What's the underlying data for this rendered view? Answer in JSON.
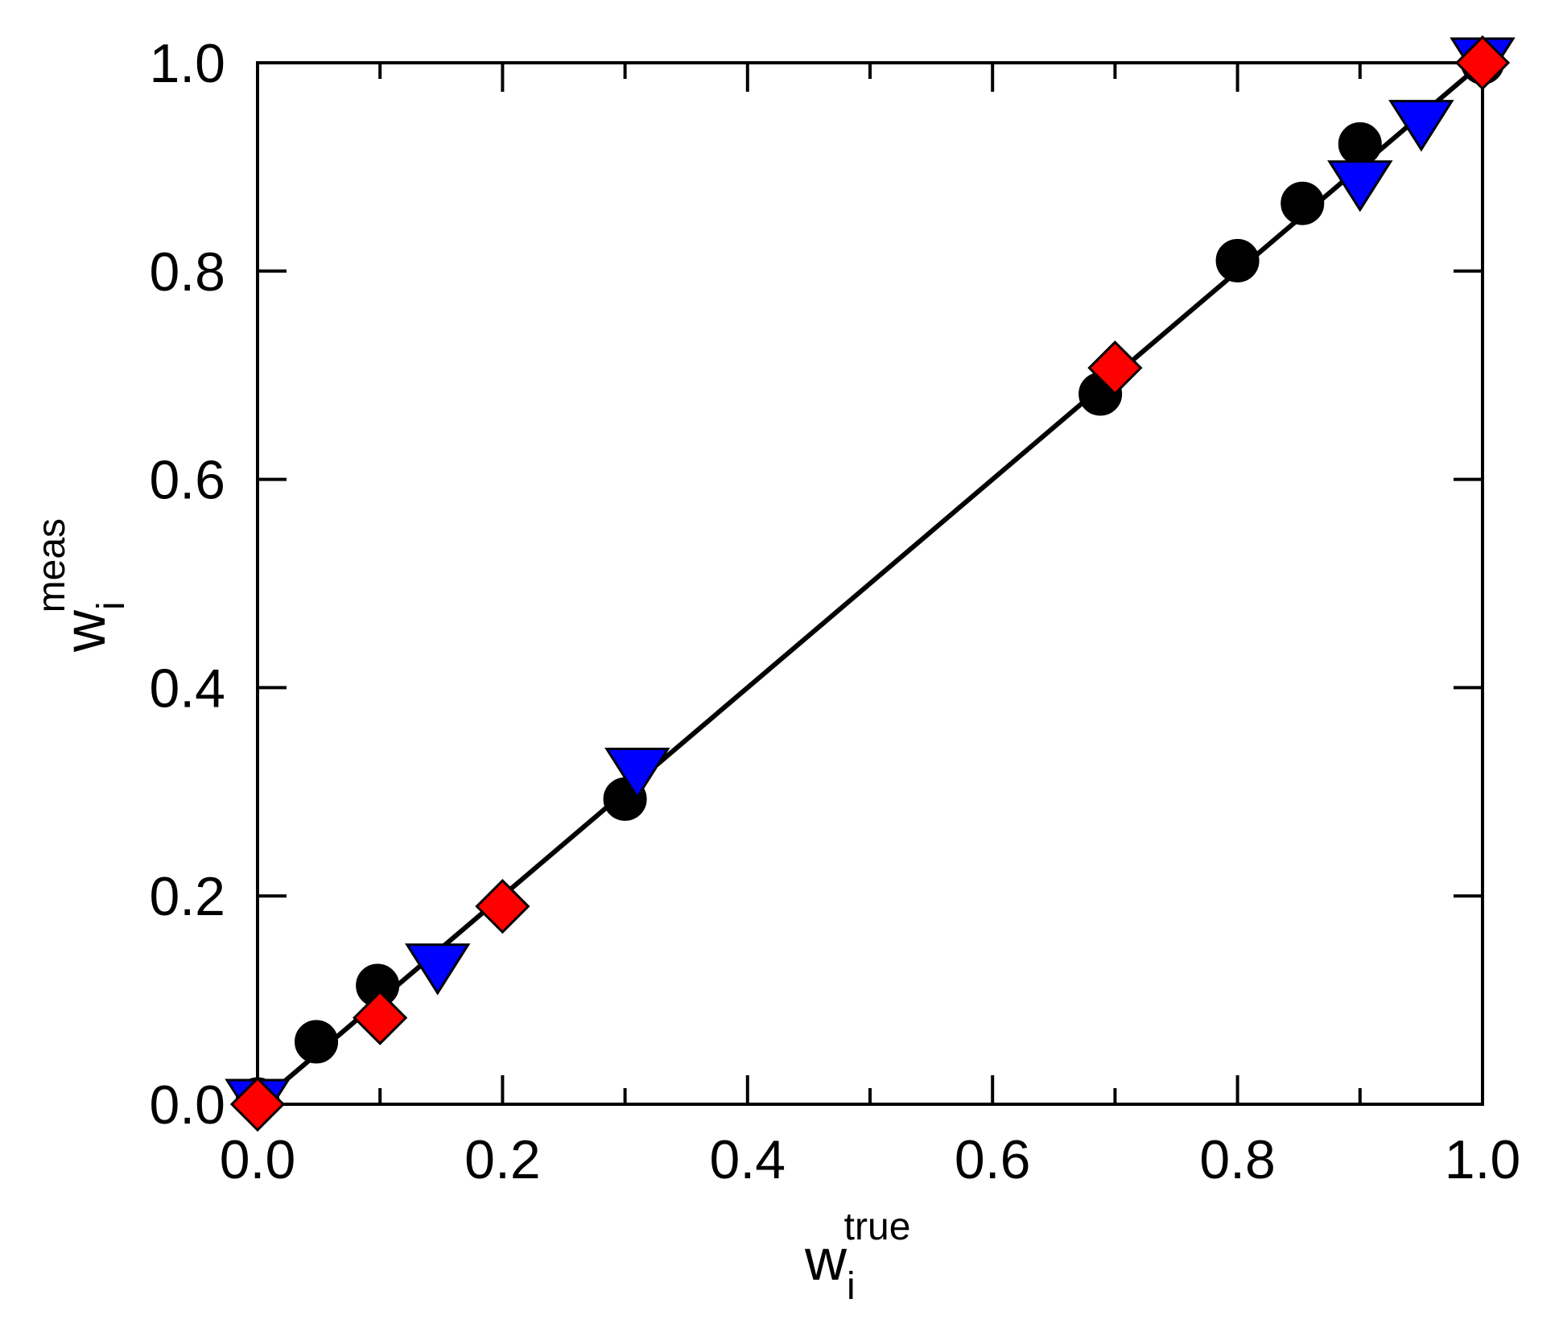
{
  "chart_data": {
    "type": "scatter",
    "xlabel": {
      "base": "w",
      "sub": "i",
      "sup": "true"
    },
    "ylabel": {
      "base": "w",
      "sub": "i",
      "sup": "meas"
    },
    "xlim": [
      0,
      1
    ],
    "ylim": [
      0,
      1
    ],
    "x_ticks": [
      "0.0",
      "0.2",
      "0.4",
      "0.6",
      "0.8",
      "1.0"
    ],
    "y_ticks": [
      "0.0",
      "0.2",
      "0.4",
      "0.6",
      "0.8",
      "1.0"
    ],
    "x_tick_values": [
      0,
      0.2,
      0.4,
      0.6,
      0.8,
      1.0
    ],
    "y_tick_values": [
      0,
      0.2,
      0.4,
      0.6,
      0.8,
      1.0
    ],
    "grid": false,
    "legend": "none",
    "reference_line": {
      "x": [
        0,
        1
      ],
      "y": [
        0,
        1
      ],
      "color": "#000000"
    },
    "series": [
      {
        "marker": "circle",
        "color": "#000000",
        "points": [
          {
            "x": 0.0,
            "y": 0.005
          },
          {
            "x": 0.048,
            "y": 0.06
          },
          {
            "x": 0.098,
            "y": 0.114
          },
          {
            "x": 0.3,
            "y": 0.293
          },
          {
            "x": 0.688,
            "y": 0.682
          },
          {
            "x": 0.8,
            "y": 0.81
          },
          {
            "x": 0.853,
            "y": 0.865
          },
          {
            "x": 0.9,
            "y": 0.922
          },
          {
            "x": 1.0,
            "y": 1.0
          }
        ]
      },
      {
        "marker": "triangle-down",
        "color": "#0000ff",
        "points": [
          {
            "x": 0.0,
            "y": 0.0
          },
          {
            "x": 0.147,
            "y": 0.13
          },
          {
            "x": 0.31,
            "y": 0.318
          },
          {
            "x": 0.9,
            "y": 0.882
          },
          {
            "x": 0.95,
            "y": 0.94
          },
          {
            "x": 1.0,
            "y": 1.0
          }
        ]
      },
      {
        "marker": "diamond",
        "color": "#ff0000",
        "points": [
          {
            "x": 0.0,
            "y": 0.0
          },
          {
            "x": 0.1,
            "y": 0.083
          },
          {
            "x": 0.2,
            "y": 0.19
          },
          {
            "x": 0.7,
            "y": 0.707
          },
          {
            "x": 1.0,
            "y": 1.0
          }
        ]
      }
    ]
  }
}
